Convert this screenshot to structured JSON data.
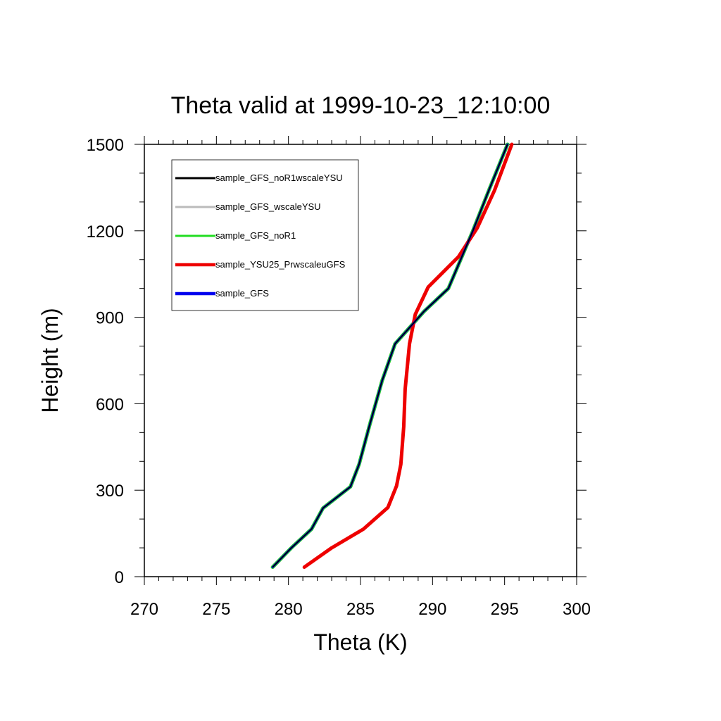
{
  "chart_data": {
    "type": "line",
    "title": "Theta valid at 1999-10-23_12:10:00",
    "xlabel": "Theta (K)",
    "ylabel": "Height (m)",
    "xlim": [
      270,
      300
    ],
    "ylim": [
      0,
      1500
    ],
    "xticks": [
      "270",
      "275",
      "280",
      "285",
      "290",
      "295",
      "300"
    ],
    "yticks": [
      "0",
      "300",
      "600",
      "900",
      "1200",
      "1500"
    ],
    "grid": false,
    "legend_position": "top-left",
    "series": [
      {
        "name": "sample_GFS_noR1wscaleYSU",
        "color": "#000000",
        "points": [
          [
            278.9,
            33
          ],
          [
            280.2,
            100
          ],
          [
            281.6,
            165
          ],
          [
            282.4,
            238
          ],
          [
            284.3,
            312
          ],
          [
            284.9,
            390
          ],
          [
            285.6,
            520
          ],
          [
            286.5,
            680
          ],
          [
            287.4,
            808
          ],
          [
            289.4,
            920
          ],
          [
            291.1,
            1000
          ],
          [
            292.8,
            1200
          ],
          [
            293.9,
            1340
          ],
          [
            295.2,
            1500
          ]
        ]
      },
      {
        "name": "sample_GFS_wscaleYSU",
        "color": "#bbbbbb",
        "points": [
          [
            278.9,
            33
          ],
          [
            280.2,
            100
          ],
          [
            281.6,
            165
          ],
          [
            282.4,
            238
          ],
          [
            284.3,
            312
          ],
          [
            284.9,
            390
          ],
          [
            285.6,
            520
          ],
          [
            286.5,
            680
          ],
          [
            287.4,
            808
          ],
          [
            289.4,
            920
          ],
          [
            291.1,
            1000
          ],
          [
            292.8,
            1200
          ],
          [
            293.9,
            1340
          ],
          [
            295.2,
            1500
          ]
        ]
      },
      {
        "name": "sample_GFS_noR1",
        "color": "#22dd22",
        "points": [
          [
            278.9,
            33
          ],
          [
            280.2,
            100
          ],
          [
            281.6,
            165
          ],
          [
            282.4,
            238
          ],
          [
            284.3,
            312
          ],
          [
            284.9,
            390
          ],
          [
            285.6,
            520
          ],
          [
            286.5,
            680
          ],
          [
            287.4,
            808
          ],
          [
            289.4,
            920
          ],
          [
            291.1,
            1000
          ],
          [
            292.8,
            1200
          ],
          [
            293.9,
            1340
          ],
          [
            295.2,
            1500
          ]
        ]
      },
      {
        "name": "sample_YSU25_PrwscaleuGFS",
        "color": "#ee0000",
        "points": [
          [
            281.1,
            33
          ],
          [
            283.0,
            100
          ],
          [
            285.2,
            165
          ],
          [
            286.9,
            240
          ],
          [
            287.5,
            315
          ],
          [
            287.8,
            390
          ],
          [
            288.0,
            520
          ],
          [
            288.1,
            650
          ],
          [
            288.4,
            808
          ],
          [
            288.8,
            910
          ],
          [
            289.7,
            1005
          ],
          [
            291.8,
            1110
          ],
          [
            293.1,
            1210
          ],
          [
            294.3,
            1340
          ],
          [
            295.5,
            1500
          ]
        ]
      },
      {
        "name": "sample_GFS",
        "color": "#0000ee",
        "points": [
          [
            278.9,
            33
          ],
          [
            280.2,
            100
          ],
          [
            281.6,
            165
          ],
          [
            282.4,
            238
          ],
          [
            284.3,
            312
          ],
          [
            284.9,
            390
          ],
          [
            285.6,
            520
          ],
          [
            286.5,
            680
          ],
          [
            287.4,
            808
          ],
          [
            289.4,
            920
          ],
          [
            291.1,
            1000
          ],
          [
            292.8,
            1200
          ],
          [
            293.9,
            1340
          ],
          [
            295.2,
            1500
          ]
        ]
      }
    ]
  }
}
